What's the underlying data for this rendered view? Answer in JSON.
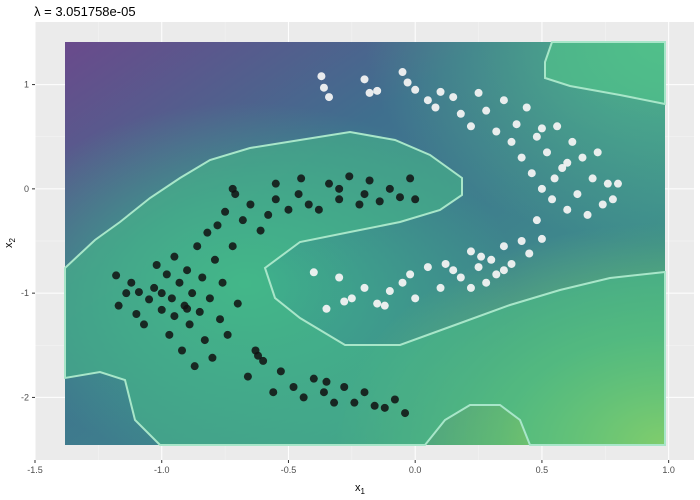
{
  "chart_data": {
    "type": "scatter",
    "title": "λ = 3.051758e-05",
    "xlabel": "x",
    "xlabel_sub": "1",
    "ylabel": "x",
    "ylabel_sub": "2",
    "xlim": [
      -1.5,
      1.1
    ],
    "ylim": [
      -2.6,
      1.6
    ],
    "data_extent": {
      "x": [
        -1.39,
        1.0
      ],
      "y": [
        -2.5,
        1.5
      ]
    },
    "x_ticks": [
      -1.5,
      -1.0,
      -0.5,
      0.0,
      0.5,
      1.0
    ],
    "x_tick_labels": [
      "-1.5",
      "-1.0",
      "-0.5",
      "0.0",
      "0.5",
      "1.0"
    ],
    "y_ticks": [
      -2,
      -1,
      0,
      1
    ],
    "y_tick_labels": [
      "-2",
      "-1",
      "0",
      "1"
    ],
    "grid": true,
    "background": "#ebebeb",
    "colors": {
      "class_dark": "#111111",
      "class_light": "#f2f2f2",
      "boundary": "#a8e6c9",
      "surface_low": "#6a4a8c",
      "surface_mid": "#3e7f91",
      "surface_high": "#c6e44a"
    },
    "surface": "smooth heat map of the fitted classifier score, a 0.5 contour drawn as the decision boundary",
    "series": [
      {
        "color": "#111111",
        "points": [
          [
            -1.18,
            -0.83
          ],
          [
            -1.17,
            -1.12
          ],
          [
            -1.14,
            -1.0
          ],
          [
            -1.12,
            -0.9
          ],
          [
            -1.1,
            -1.2
          ],
          [
            -1.09,
            -0.99
          ],
          [
            -1.07,
            -1.3
          ],
          [
            -1.05,
            -1.06
          ],
          [
            -1.03,
            -0.95
          ],
          [
            -1.02,
            -0.73
          ],
          [
            -1.0,
            -1.16
          ],
          [
            -0.98,
            -0.82
          ],
          [
            -0.97,
            -1.4
          ],
          [
            -0.96,
            -1.05
          ],
          [
            -0.95,
            -1.22
          ],
          [
            -0.93,
            -0.9
          ],
          [
            -0.92,
            -1.55
          ],
          [
            -0.91,
            -1.12
          ],
          [
            -0.9,
            -0.78
          ],
          [
            -0.89,
            -1.3
          ],
          [
            -0.88,
            -1.0
          ],
          [
            -0.87,
            -1.7
          ],
          [
            -0.86,
            -0.55
          ],
          [
            -0.85,
            -1.18
          ],
          [
            -0.84,
            -0.85
          ],
          [
            -0.83,
            -1.45
          ],
          [
            -0.82,
            -0.42
          ],
          [
            -0.81,
            -1.05
          ],
          [
            -0.8,
            -1.62
          ],
          [
            -0.79,
            -0.68
          ],
          [
            -0.78,
            -0.35
          ],
          [
            -0.77,
            -1.25
          ],
          [
            -0.76,
            -0.9
          ],
          [
            -0.75,
            -0.22
          ],
          [
            -0.74,
            -1.4
          ],
          [
            -0.72,
            -0.55
          ],
          [
            -0.71,
            -0.05
          ],
          [
            -0.7,
            -1.1
          ],
          [
            -0.68,
            -0.3
          ],
          [
            -0.66,
            -1.8
          ],
          [
            -0.65,
            -0.15
          ],
          [
            -0.63,
            -1.55
          ],
          [
            -0.61,
            -0.4
          ],
          [
            -0.6,
            -1.65
          ],
          [
            -0.58,
            -0.25
          ],
          [
            -0.56,
            -1.95
          ],
          [
            -0.55,
            -0.1
          ],
          [
            -0.53,
            -1.75
          ],
          [
            -0.5,
            -0.2
          ],
          [
            -0.48,
            -1.9
          ],
          [
            -0.46,
            -0.05
          ],
          [
            -0.44,
            -2.0
          ],
          [
            -0.42,
            -0.15
          ],
          [
            -0.4,
            -1.82
          ],
          [
            -0.38,
            -0.2
          ],
          [
            -0.36,
            -1.95
          ],
          [
            -0.34,
            0.05
          ],
          [
            -0.32,
            -2.05
          ],
          [
            -0.3,
            -0.1
          ],
          [
            -0.28,
            -1.9
          ],
          [
            -0.26,
            0.12
          ],
          [
            -0.24,
            -2.05
          ],
          [
            -0.22,
            -0.15
          ],
          [
            -0.2,
            -1.95
          ],
          [
            -0.18,
            0.08
          ],
          [
            -0.16,
            -2.08
          ],
          [
            -0.14,
            -0.12
          ],
          [
            -0.12,
            -2.1
          ],
          [
            -0.1,
            0.0
          ],
          [
            -0.08,
            -2.02
          ],
          [
            -0.06,
            -0.08
          ],
          [
            -0.04,
            -2.15
          ],
          [
            -0.02,
            0.1
          ],
          [
            0.0,
            -0.1
          ],
          [
            -0.35,
            -1.85
          ],
          [
            -0.62,
            -1.6
          ],
          [
            -0.9,
            -1.15
          ],
          [
            -1.0,
            -1.0
          ],
          [
            -0.95,
            -0.65
          ],
          [
            -0.72,
            0.0
          ],
          [
            -0.55,
            0.05
          ],
          [
            -0.45,
            0.1
          ],
          [
            -0.3,
            0.0
          ],
          [
            -0.2,
            -0.05
          ]
        ]
      },
      {
        "color": "#f2f2f2",
        "points": [
          [
            -0.37,
            1.08
          ],
          [
            -0.36,
            0.97
          ],
          [
            -0.34,
            0.88
          ],
          [
            -0.2,
            1.05
          ],
          [
            -0.18,
            0.92
          ],
          [
            -0.15,
            0.94
          ],
          [
            -0.05,
            1.12
          ],
          [
            -0.03,
            1.02
          ],
          [
            0.0,
            0.95
          ],
          [
            0.05,
            0.85
          ],
          [
            0.08,
            0.78
          ],
          [
            0.1,
            0.93
          ],
          [
            0.15,
            0.88
          ],
          [
            0.18,
            0.72
          ],
          [
            0.22,
            0.6
          ],
          [
            0.25,
            0.92
          ],
          [
            0.28,
            0.75
          ],
          [
            0.32,
            0.55
          ],
          [
            0.35,
            0.85
          ],
          [
            0.38,
            0.45
          ],
          [
            0.4,
            0.62
          ],
          [
            0.42,
            0.3
          ],
          [
            0.44,
            0.78
          ],
          [
            0.46,
            0.15
          ],
          [
            0.48,
            0.5
          ],
          [
            0.5,
            0.0
          ],
          [
            0.52,
            0.35
          ],
          [
            0.54,
            -0.1
          ],
          [
            0.56,
            0.6
          ],
          [
            0.58,
            0.2
          ],
          [
            0.6,
            -0.2
          ],
          [
            0.62,
            0.45
          ],
          [
            0.64,
            -0.05
          ],
          [
            0.66,
            0.3
          ],
          [
            0.68,
            -0.25
          ],
          [
            0.7,
            0.1
          ],
          [
            0.72,
            0.35
          ],
          [
            0.74,
            -0.15
          ],
          [
            0.76,
            0.05
          ],
          [
            0.78,
            -0.1
          ],
          [
            0.8,
            0.05
          ],
          [
            0.5,
            0.58
          ],
          [
            0.55,
            0.1
          ],
          [
            0.6,
            0.25
          ],
          [
            0.48,
            -0.3
          ],
          [
            -0.4,
            -0.8
          ],
          [
            -0.3,
            -0.85
          ],
          [
            -0.25,
            -1.05
          ],
          [
            -0.2,
            -0.95
          ],
          [
            -0.15,
            -1.1
          ],
          [
            -0.1,
            -0.98
          ],
          [
            -0.05,
            -0.9
          ],
          [
            0.0,
            -1.05
          ],
          [
            0.05,
            -0.75
          ],
          [
            0.1,
            -0.95
          ],
          [
            0.12,
            -0.72
          ],
          [
            0.18,
            -0.85
          ],
          [
            0.22,
            -0.6
          ],
          [
            0.25,
            -0.75
          ],
          [
            0.28,
            -0.9
          ],
          [
            0.3,
            -0.68
          ],
          [
            0.32,
            -0.82
          ],
          [
            0.35,
            -0.55
          ],
          [
            0.38,
            -0.72
          ],
          [
            0.42,
            -0.5
          ],
          [
            0.45,
            -0.62
          ],
          [
            0.5,
            -0.48
          ],
          [
            0.22,
            -0.95
          ],
          [
            0.26,
            -0.65
          ],
          [
            0.35,
            -0.78
          ],
          [
            -0.35,
            -1.15
          ],
          [
            -0.28,
            -1.08
          ],
          [
            -0.12,
            -1.12
          ],
          [
            -0.02,
            -0.82
          ],
          [
            0.15,
            -0.78
          ]
        ]
      }
    ]
  }
}
